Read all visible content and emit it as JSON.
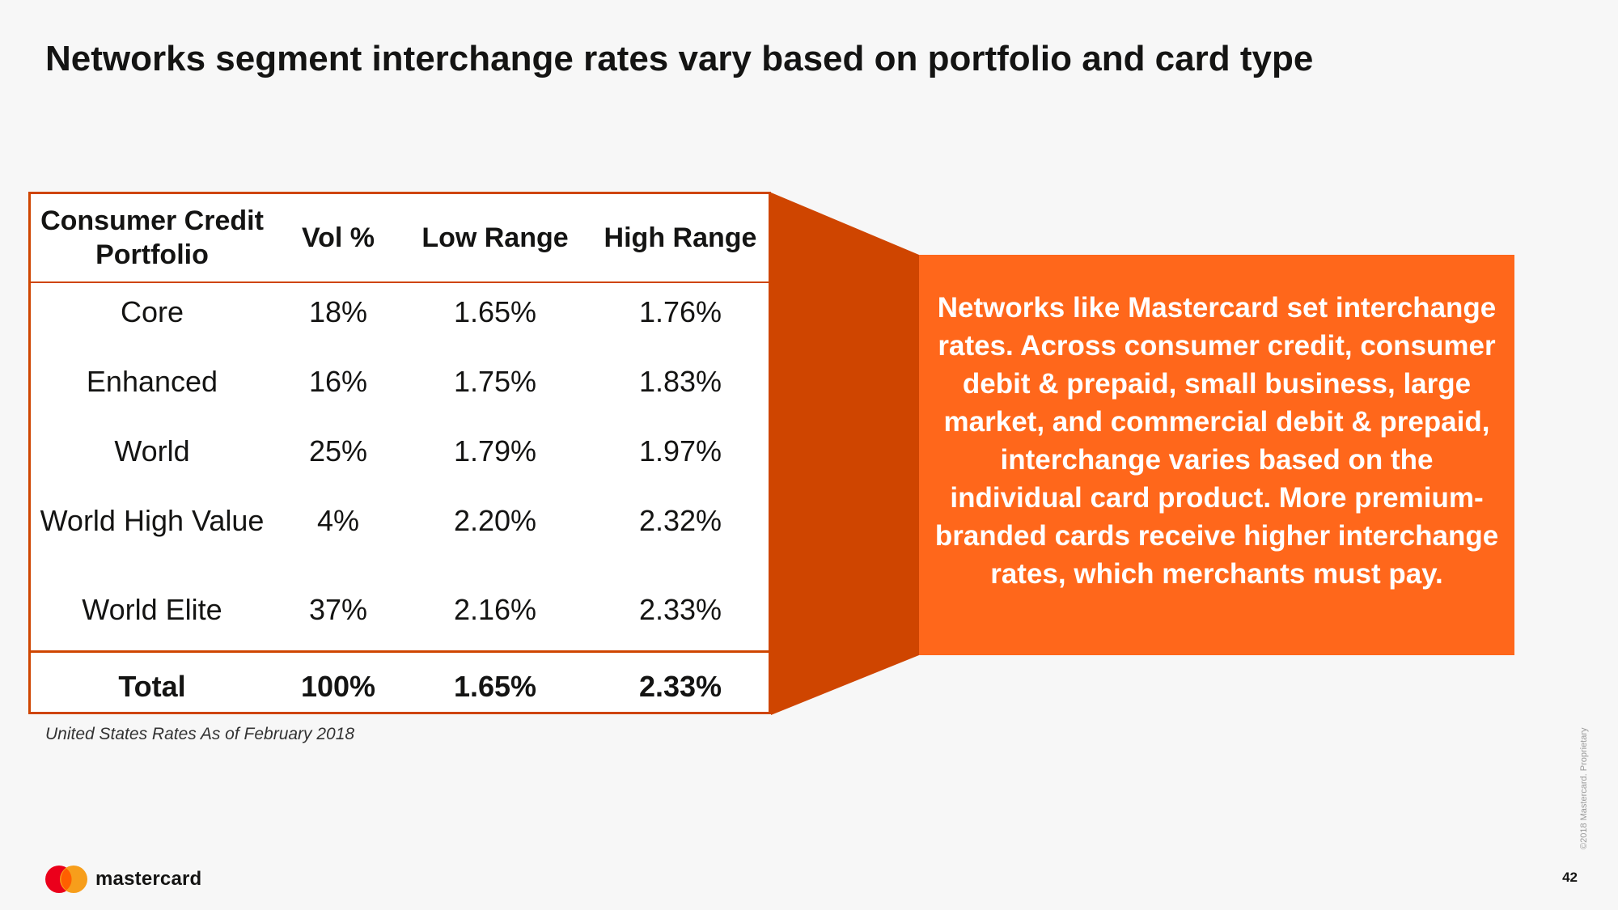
{
  "title": "Networks segment interchange rates vary based on portfolio and card type",
  "table": {
    "headers": [
      "Consumer Credit Portfolio",
      "Vol %",
      "Low Range",
      "High Range"
    ],
    "rows": [
      {
        "portfolio": "Core",
        "vol": "18%",
        "low": "1.65%",
        "high": "1.76%"
      },
      {
        "portfolio": "Enhanced",
        "vol": "16%",
        "low": "1.75%",
        "high": "1.83%"
      },
      {
        "portfolio": "World",
        "vol": "25%",
        "low": "1.79%",
        "high": "1.97%"
      },
      {
        "portfolio": "World High Value",
        "vol": "4%",
        "low": "2.20%",
        "high": "2.32%"
      },
      {
        "portfolio": "World Elite",
        "vol": "37%",
        "low": "2.16%",
        "high": "2.33%"
      }
    ],
    "total": {
      "portfolio": "Total",
      "vol": "100%",
      "low": "1.65%",
      "high": "2.33%"
    }
  },
  "footnote": "United States Rates As of February 2018",
  "callout": "Networks like Mastercard set interchange rates. Across consumer credit, consumer debit & prepaid, small business, large market, and commercial debit & prepaid, interchange varies based on the individual card product. More premium-branded cards receive higher interchange rates, which merchants must pay.",
  "logo": {
    "wordmark": "mastercard",
    "icon": "mastercard-logo-icon"
  },
  "page_number": "42",
  "copyright": "©2018 Mastercard. Proprietary",
  "colors": {
    "accent_orange": "#ff671b",
    "connector_orange": "#cf4500",
    "border": "#cf4500",
    "text": "#141413",
    "background": "#f7f7f7"
  }
}
